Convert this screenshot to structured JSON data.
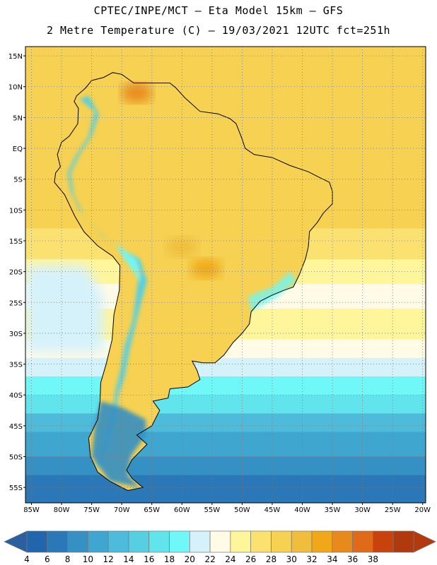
{
  "header": {
    "line1": "CPTEC/INPE/MCT –  Eta Model 15km – GFS",
    "line2": "2 Metre Temperature (C) – 19/03/2021 12UTC fct=251h"
  },
  "axes": {
    "lat_labels": [
      "15N",
      "10N",
      "5N",
      "EQ",
      "5S",
      "10S",
      "15S",
      "20S",
      "25S",
      "30S",
      "35S",
      "40S",
      "45S",
      "50S",
      "55S"
    ],
    "lat_values": [
      15,
      10,
      5,
      0,
      -5,
      -10,
      -15,
      -20,
      -25,
      -30,
      -35,
      -40,
      -45,
      -50,
      -55
    ],
    "lon_labels": [
      "85W",
      "80W",
      "75W",
      "70W",
      "65W",
      "60W",
      "55W",
      "50W",
      "45W",
      "40W",
      "35W",
      "30W",
      "25W",
      "20W"
    ],
    "lon_values": [
      -85,
      -80,
      -75,
      -70,
      -65,
      -60,
      -55,
      -50,
      -45,
      -40,
      -35,
      -30,
      -25,
      -20
    ],
    "lat_range": [
      -57.5,
      16.5
    ],
    "lon_range": [
      -86,
      -19.5
    ],
    "grid": true
  },
  "colorbar": {
    "labels": [
      "4",
      "6",
      "8",
      "10",
      "12",
      "14",
      "16",
      "18",
      "20",
      "22",
      "24",
      "26",
      "28",
      "30",
      "32",
      "34",
      "36",
      "38"
    ],
    "colors": [
      "#2166ac",
      "#2b78b8",
      "#3590c4",
      "#3fa6d0",
      "#4dbbd9",
      "#57cfe2",
      "#61e4ec",
      "#70f7f7",
      "#d5f2fb",
      "#fffbe6",
      "#fff59a",
      "#fbe270",
      "#f6d152",
      "#f0be3c",
      "#f0a818",
      "#e8891c",
      "#de6a1a",
      "#c8420e",
      "#b03a0e"
    ],
    "left_arrow_color": "#2b5f9e",
    "right_arrow_color": "#b33a0e"
  },
  "field": {
    "ocean_bands": [
      {
        "lat_top": 16.5,
        "lat_bot": -13,
        "color": "#f6d152"
      },
      {
        "lat_top": -13,
        "lat_bot": -18,
        "color": "#fbe270"
      },
      {
        "lat_top": -18,
        "lat_bot": -22,
        "color": "#fff59a"
      },
      {
        "lat_top": -22,
        "lat_bot": -26,
        "color": "#fffbe6"
      },
      {
        "lat_top": -26,
        "lat_bot": -31,
        "color": "#fff59a"
      },
      {
        "lat_top": -31,
        "lat_bot": -34,
        "color": "#fffbe6"
      },
      {
        "lat_top": -34,
        "lat_bot": -37,
        "color": "#d5f2fb"
      },
      {
        "lat_top": -37,
        "lat_bot": -40,
        "color": "#70f7f7"
      },
      {
        "lat_top": -40,
        "lat_bot": -43,
        "color": "#61e4ec"
      },
      {
        "lat_top": -43,
        "lat_bot": -46,
        "color": "#4dbbd9"
      },
      {
        "lat_top": -46,
        "lat_bot": -50,
        "color": "#3fa6d0"
      },
      {
        "lat_top": -50,
        "lat_bot": -53,
        "color": "#3590c4"
      },
      {
        "lat_top": -53,
        "lat_bot": -57.5,
        "color": "#2b78b8"
      }
    ],
    "pacific_cool_tongue": "#d5f2fb",
    "land_base": "#f6d152",
    "andes_color": "#57cfe2",
    "andes_high_color": "#70f7f7",
    "patagonia_color": "#3590c4",
    "hot_spots": [
      {
        "lon": -56,
        "lat": -19.5,
        "color": "#f0a818"
      },
      {
        "lon": -67.5,
        "lat": 9,
        "color": "#e8891c"
      },
      {
        "lon": -60,
        "lat": -16,
        "color": "#f0be3c"
      }
    ]
  }
}
